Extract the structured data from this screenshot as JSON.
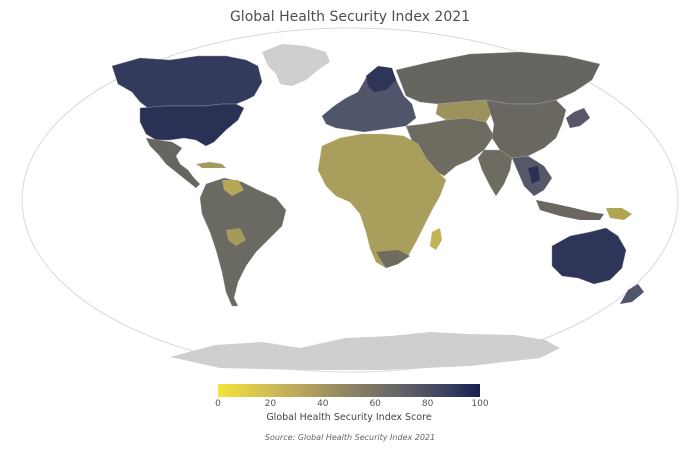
{
  "title": "Global Health Security Index 2021",
  "colorbar": {
    "label": "Global Health Security Index Score",
    "ticks": [
      "0",
      "20",
      "40",
      "60",
      "80",
      "100"
    ],
    "range": [
      0,
      100
    ],
    "colors": [
      "#f4e33c",
      "#c7b25a",
      "#8f8461",
      "#5e5f65",
      "#3a3f5e",
      "#16204f"
    ]
  },
  "source": "Source: Global Health Security Index 2021",
  "map": {
    "projection": "robinson-like ellipse",
    "no_data_color": "#cfcfcf",
    "regions": [
      {
        "name": "United States",
        "level": "high",
        "color": "#2b3155"
      },
      {
        "name": "Canada",
        "level": "high",
        "color": "#333a5c"
      },
      {
        "name": "Greenland",
        "level": "no-data",
        "color": "#cfcfcf"
      },
      {
        "name": "Antarctica",
        "level": "no-data",
        "color": "#cfcfcf"
      },
      {
        "name": "Australia",
        "level": "high",
        "color": "#2f3558"
      },
      {
        "name": "Russia",
        "level": "mid",
        "color": "#66655f"
      },
      {
        "name": "China",
        "level": "mid",
        "color": "#6a6760"
      },
      {
        "name": "Europe",
        "level": "high-mid",
        "color": "#50556a"
      },
      {
        "name": "Africa",
        "level": "low",
        "color": "#a99e5c"
      },
      {
        "name": "South America",
        "level": "mid",
        "color": "#6b6a62"
      },
      {
        "name": "India",
        "level": "mid",
        "color": "#6e6b60"
      }
    ]
  }
}
